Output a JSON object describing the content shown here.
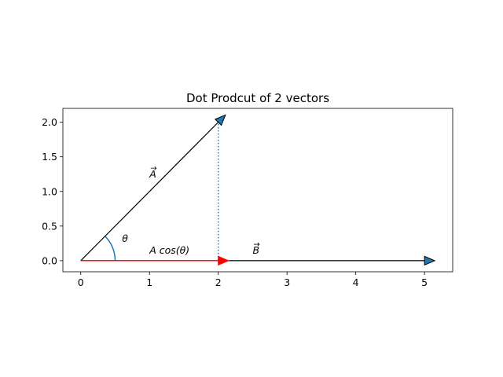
{
  "chart_data": {
    "type": "line",
    "title": "Dot Prodcut of 2 vectors",
    "xlabel": "",
    "ylabel": "",
    "xlim": [
      -0.26,
      5.41
    ],
    "ylim": [
      -0.16,
      2.2
    ],
    "aspect": "equal",
    "x_ticks": [
      0,
      1,
      2,
      3,
      4,
      5
    ],
    "y_ticks": [
      0.0,
      0.5,
      1.0,
      1.5,
      2.0
    ],
    "y_tick_labels": [
      "0.0",
      "0.5",
      "1.0",
      "1.5",
      "2.0"
    ],
    "grid": false,
    "vectors": [
      {
        "label": "A",
        "from": [
          0,
          0
        ],
        "to": [
          2,
          2
        ],
        "color": "#000000",
        "head_fill": "#1f77b4"
      },
      {
        "label": "B",
        "from": [
          0,
          0
        ],
        "to": [
          5,
          0
        ],
        "color": "#000000",
        "head_fill": "#1f77b4"
      },
      {
        "label": "A cos(θ)",
        "from": [
          0,
          0
        ],
        "to": [
          2,
          0
        ],
        "color": "#ff0000",
        "head_fill": "#ff0000"
      }
    ],
    "projection_line": {
      "from": [
        2,
        2.02
      ],
      "to": [
        2,
        0
      ],
      "style": "dotted",
      "color": "#1f77b4"
    },
    "angle_arc": {
      "center": [
        0,
        0
      ],
      "radius": 0.5,
      "from_deg": 0,
      "to_deg": 45,
      "color": "#1f77b4"
    },
    "annotations": [
      {
        "text": "A",
        "vector_arrow": true,
        "x": 1.0,
        "y": 1.2
      },
      {
        "text": "θ",
        "x": 0.6,
        "y": 0.27
      },
      {
        "text": "A cos(θ)",
        "x": 1.0,
        "y": 0.1
      },
      {
        "text": "B",
        "vector_arrow": true,
        "x": 2.5,
        "y": 0.1
      }
    ]
  }
}
